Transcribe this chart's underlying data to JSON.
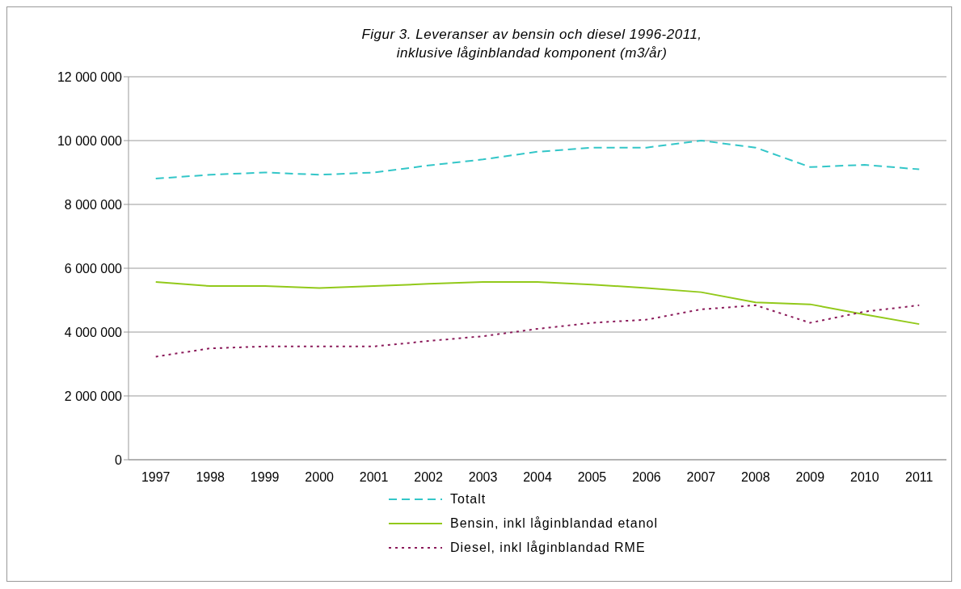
{
  "chart_data": {
    "type": "line",
    "title": "Figur 3. Leveranser av bensin och diesel 1996-2011,\ninklusive låginblandad komponent (m3/år)",
    "categories": [
      "1997",
      "1998",
      "1999",
      "2000",
      "2001",
      "2002",
      "2003",
      "2004",
      "2005",
      "2006",
      "2007",
      "2008",
      "2009",
      "2010",
      "2011"
    ],
    "series": [
      {
        "name": "Totalt",
        "color": "#33c6c8",
        "line_style": "dashed",
        "values": [
          8810000,
          8930000,
          9000000,
          8930000,
          9000000,
          9220000,
          9410000,
          9650000,
          9780000,
          9780000,
          10000000,
          9780000,
          9170000,
          9240000,
          9100000
        ]
      },
      {
        "name": "Bensin, inkl låginblandad etanol",
        "color": "#92c91a",
        "line_style": "solid",
        "values": [
          5570000,
          5440000,
          5440000,
          5380000,
          5440000,
          5510000,
          5570000,
          5570000,
          5490000,
          5380000,
          5250000,
          4930000,
          4870000,
          4550000,
          4250000
        ]
      },
      {
        "name": "Diesel, inkl låginblandad RME",
        "color": "#8b1a5a",
        "line_style": "dotted",
        "values": [
          3230000,
          3490000,
          3550000,
          3550000,
          3550000,
          3720000,
          3870000,
          4100000,
          4290000,
          4390000,
          4710000,
          4840000,
          4290000,
          4640000,
          4840000
        ]
      }
    ],
    "ylim": [
      0,
      12000000
    ],
    "yticks": [
      0,
      2000000,
      4000000,
      6000000,
      8000000,
      10000000,
      12000000
    ],
    "grid": "y",
    "legend": "bottom",
    "marker": "none"
  }
}
